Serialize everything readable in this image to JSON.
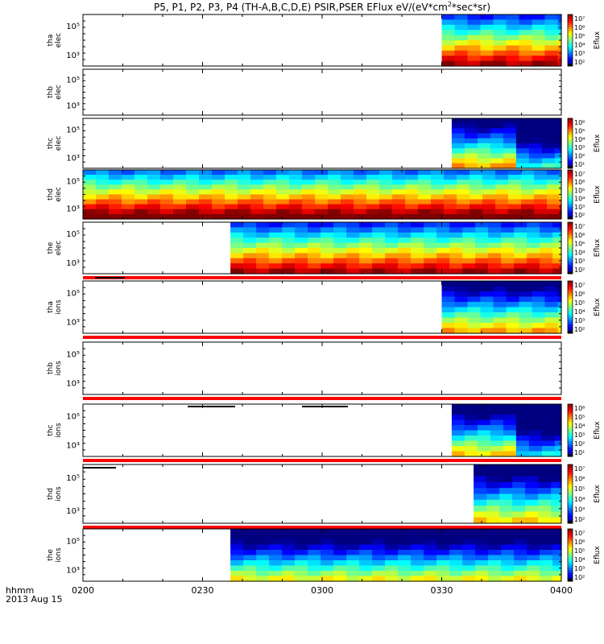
{
  "chart_data": {
    "type": "heatmap",
    "title": "P5, P1, P2, P3, P4 (TH-A,B,C,D,E) PSIR,PSER EFlux eV/(eV*cm",
    "title_sup": "2",
    "title_tail": "*sec*sr)",
    "colorbar_label": "Eflux",
    "x_axis": {
      "start": "0200",
      "end": "0400",
      "tick_labels": [
        "0200",
        "0230",
        "0300",
        "0330",
        "0400"
      ],
      "ticks_min": [
        0,
        30,
        60,
        90,
        120
      ],
      "unit_label": "hhmm",
      "date_label": "2013 Aug 15"
    },
    "panels": [
      {
        "id": "tha-elec",
        "label": [
          "tha",
          "elec"
        ],
        "yticks": [
          "10⁵",
          "10³"
        ],
        "data_start_min": 90,
        "cbar": [
          "10⁷",
          "10⁶",
          "10⁵",
          "10⁴",
          "10³",
          "10²"
        ],
        "bias": 0,
        "red_bar": false
      },
      {
        "id": "thb-elec",
        "label": [
          "thb",
          "elec"
        ],
        "yticks": [
          "10⁵",
          "10³"
        ],
        "data_start_min": null,
        "cbar": null,
        "bias": 0,
        "red_bar": false
      },
      {
        "id": "thc-elec",
        "label": [
          "thc",
          "elec"
        ],
        "yticks": [
          "10⁵",
          "10³"
        ],
        "data_start_min": 92.5,
        "cbar": [
          "10⁶",
          "10⁵",
          "10⁴",
          "10³",
          "10²",
          "10¹"
        ],
        "bias": -0.25,
        "red_bar": false,
        "split_min": 109,
        "split_shift": 0.3
      },
      {
        "id": "thd-elec",
        "label": [
          "thd",
          "elec"
        ],
        "yticks": [
          "10⁵",
          "10³"
        ],
        "data_start_min": 0,
        "cbar": [
          "10⁷",
          "10⁶",
          "10⁵",
          "10⁴",
          "10³",
          "10²"
        ],
        "bias": 0.08,
        "red_bar": false
      },
      {
        "id": "the-elec",
        "label": [
          "the",
          "elec"
        ],
        "yticks": [
          "10⁵",
          "10³"
        ],
        "data_start_min": 37,
        "cbar": [
          "10⁷",
          "10⁶",
          "10⁵",
          "10⁴",
          "10³",
          "10²"
        ],
        "bias": 0,
        "red_bar": true
      },
      {
        "id": "tha-ions",
        "label": [
          "tha",
          "ions"
        ],
        "yticks": [
          "10⁵",
          "10³"
        ],
        "data_start_min": 90,
        "cbar": [
          "10⁷",
          "10⁶",
          "10⁵",
          "10⁴",
          "10³",
          "10²"
        ],
        "bias": -0.25,
        "red_bar": true
      },
      {
        "id": "thb-ions",
        "label": [
          "thb",
          "ions"
        ],
        "yticks": [
          "10⁵",
          "10³"
        ],
        "data_start_min": null,
        "cbar": null,
        "bias": 0,
        "red_bar": true
      },
      {
        "id": "thc-ions",
        "label": [
          "thc",
          "ions"
        ],
        "yticks": [
          "10⁵",
          "10³"
        ],
        "data_start_min": 92.5,
        "cbar": [
          "10⁶",
          "10⁵",
          "10⁴",
          "10³",
          "10²",
          "10¹"
        ],
        "bias": -0.3,
        "red_bar": true,
        "split_min": 109,
        "split_shift": 0.3
      },
      {
        "id": "thd-ions",
        "label": [
          "thd",
          "ions"
        ],
        "yticks": [
          "10⁵",
          "10³"
        ],
        "data_start_min": 98,
        "cbar": [
          "10⁷",
          "10⁶",
          "10⁵",
          "10⁴",
          "10³",
          "10²"
        ],
        "bias": -0.3,
        "red_bar": true
      },
      {
        "id": "the-ions",
        "label": [
          "the",
          "ions"
        ],
        "yticks": [
          "10⁵",
          "10³"
        ],
        "data_start_min": 37,
        "cbar": [
          "10⁷",
          "10⁶",
          "10⁵",
          "10⁴",
          "10³",
          "10²"
        ],
        "bias": -0.35,
        "red_bar": false
      }
    ]
  }
}
